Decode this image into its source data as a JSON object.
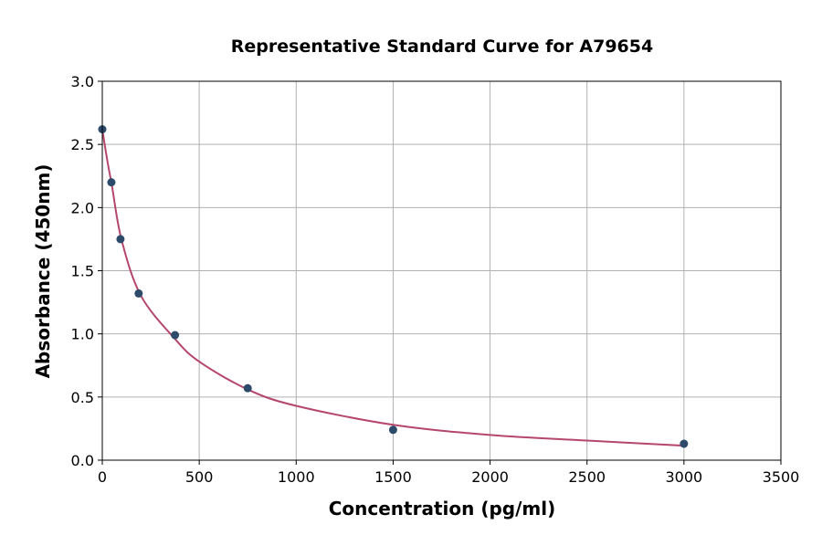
{
  "chart_data": {
    "type": "scatter",
    "title": "Representative Standard Curve for A79654",
    "xlabel": "Concentration (pg/ml)",
    "ylabel": "Absorbance (450nm)",
    "xlim": [
      0,
      3500
    ],
    "ylim": [
      0,
      3.0
    ],
    "xticks": [
      0,
      500,
      1000,
      1500,
      2000,
      2500,
      3000,
      3500
    ],
    "yticks": [
      0.0,
      0.5,
      1.0,
      1.5,
      2.0,
      2.5,
      3.0
    ],
    "xtick_labels": [
      "0",
      "500",
      "1000",
      "1500",
      "2000",
      "2500",
      "3000",
      "3500"
    ],
    "ytick_labels": [
      "0.0",
      "0.5",
      "1.0",
      "1.5",
      "2.0",
      "2.5",
      "3.0"
    ],
    "grid": true,
    "points": {
      "x": [
        0,
        46.875,
        93.75,
        187.5,
        375,
        750,
        1500,
        3000
      ],
      "y": [
        2.62,
        2.2,
        1.75,
        1.32,
        0.99,
        0.57,
        0.24,
        0.13
      ],
      "color": "#2e4a6b"
    },
    "fit_curve": {
      "x": [
        0,
        25,
        50,
        100,
        200,
        375,
        500,
        750,
        1000,
        1500,
        2000,
        2500,
        3000
      ],
      "y": [
        2.62,
        2.38,
        2.17,
        1.74,
        1.3,
        0.96,
        0.78,
        0.56,
        0.43,
        0.28,
        0.2,
        0.155,
        0.115
      ],
      "color": "#b5476b"
    }
  }
}
